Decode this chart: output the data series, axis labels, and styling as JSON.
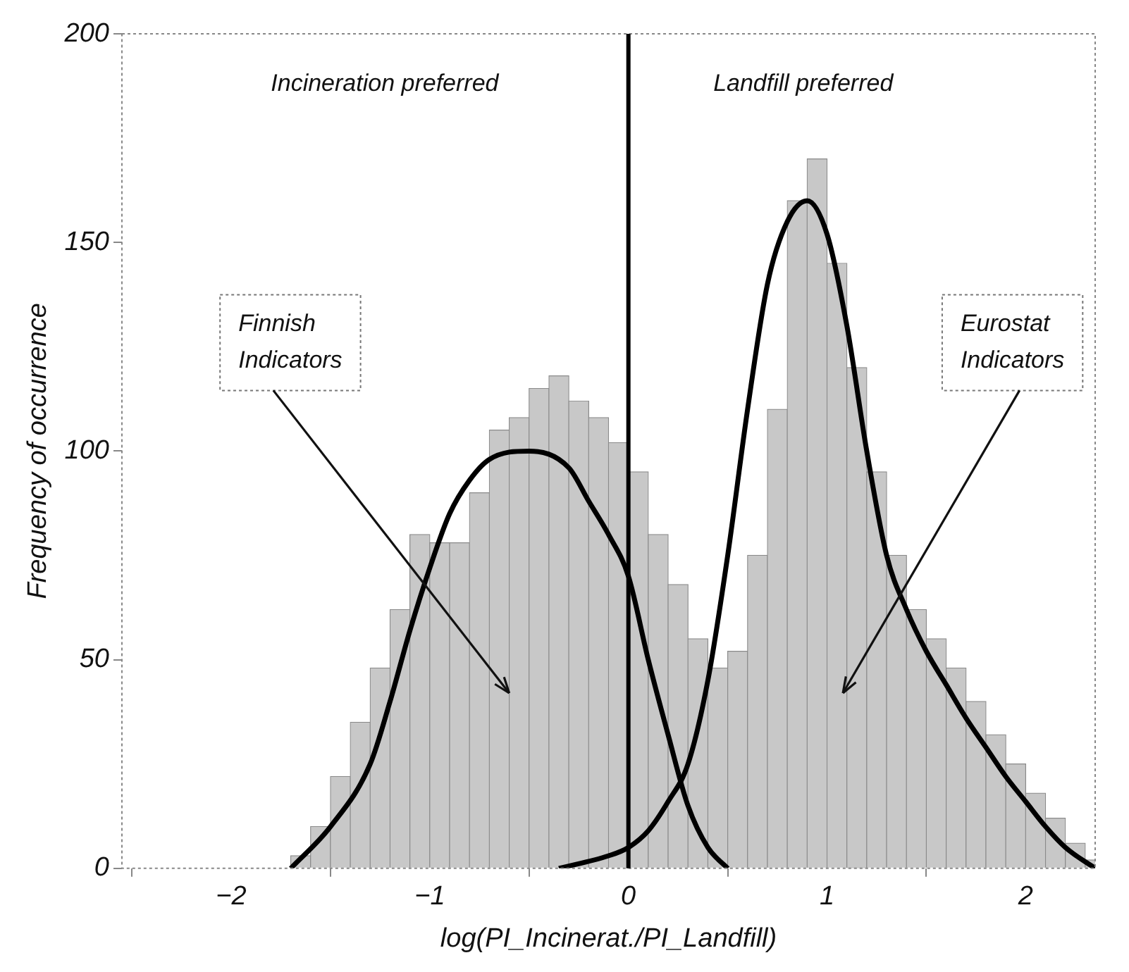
{
  "chart_data": {
    "type": "histogram",
    "xlabel": "log(PI_Incinerat./PI_Landfill)",
    "ylabel": "Frequency of occurrence",
    "xlim": [
      -2.55,
      2.35
    ],
    "ylim": [
      0,
      200
    ],
    "xticks": [
      {
        "value": -2,
        "label": "−2"
      },
      {
        "value": -1,
        "label": "−1"
      },
      0,
      1,
      2
    ],
    "yticks": [
      0,
      50,
      100,
      150,
      200
    ],
    "grid": false,
    "legend": false,
    "series": [
      {
        "color": "#c8c8c8",
        "bins": [
          -1.7,
          -1.6,
          -1.5,
          -1.4,
          -1.3,
          -1.2,
          -1.1,
          -1.0,
          -0.9,
          -0.8,
          -0.7,
          -0.6,
          -0.5,
          -0.4,
          -0.3,
          -0.2,
          -0.1,
          0.0,
          0.1,
          0.2,
          0.3,
          0.4,
          0.5,
          0.6,
          0.7,
          0.8,
          0.9,
          1.0,
          1.1,
          1.2,
          1.3,
          1.4,
          1.5,
          1.6,
          1.7,
          1.8,
          1.9,
          2.0,
          2.1,
          2.2,
          2.3,
          2.4
        ],
        "values": [
          3,
          10,
          22,
          35,
          48,
          62,
          80,
          78,
          78,
          90,
          105,
          108,
          115,
          118,
          112,
          108,
          102,
          95,
          80,
          68,
          55,
          48,
          52,
          75,
          110,
          160,
          170,
          145,
          120,
          95,
          75,
          62,
          55,
          48,
          40,
          32,
          25,
          18,
          12,
          6,
          2
        ]
      },
      {
        "type": "line",
        "color": "#000000",
        "marker": "none",
        "line_style": "solid",
        "x": [
          -1.7,
          -1.5,
          -1.3,
          -1.2,
          -1.1,
          -1.0,
          -0.9,
          -0.8,
          -0.7,
          -0.5,
          -0.3,
          -0.2,
          -0.1,
          0.0,
          0.1,
          0.2,
          0.3,
          0.4,
          0.5
        ],
        "values": [
          0,
          10,
          25,
          40,
          57,
          72,
          85,
          93,
          98,
          100,
          96,
          88,
          80,
          70,
          50,
          32,
          15,
          5,
          0
        ]
      },
      {
        "type": "line",
        "color": "#000000",
        "marker": "none",
        "line_style": "solid",
        "x": [
          -0.35,
          -0.1,
          0.0,
          0.1,
          0.2,
          0.3,
          0.4,
          0.5,
          0.6,
          0.7,
          0.8,
          0.9,
          1.0,
          1.1,
          1.2,
          1.3,
          1.4,
          1.5,
          1.6,
          1.7,
          1.8,
          1.9,
          2.0,
          2.1,
          2.2,
          2.35
        ],
        "values": [
          0,
          3,
          5,
          9,
          16,
          25,
          45,
          75,
          110,
          140,
          155,
          160,
          152,
          130,
          100,
          75,
          62,
          52,
          44,
          36,
          29,
          22,
          16,
          10,
          5,
          0
        ]
      }
    ],
    "ref_lines": [
      {
        "axis": "x",
        "value": 0,
        "color": "#000000"
      }
    ],
    "annotations": [
      "Incineration preferred",
      "Landfill preferred",
      {
        "text": "Finnish\nIndicators",
        "x": -0.6,
        "y": 42
      },
      {
        "text": "Eurostat\nIndicators",
        "x": 1.08,
        "y": 42
      }
    ]
  }
}
